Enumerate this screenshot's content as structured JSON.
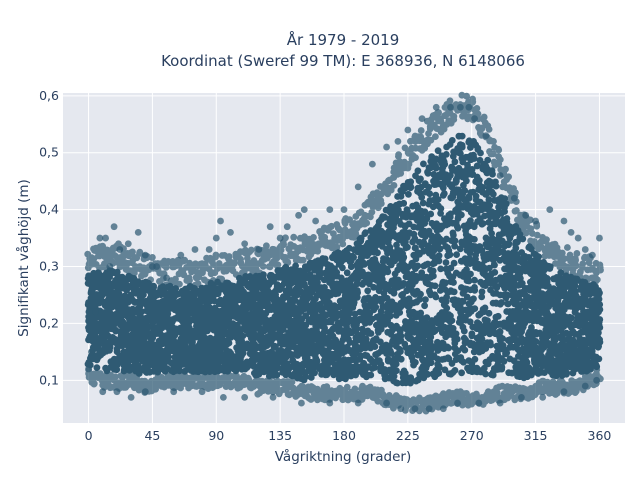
{
  "chart_data": {
    "type": "scatter",
    "title_line1": "År 1979 - 2019",
    "title_line2": "Koordinat (Sweref 99 TM): E 368936, N 6148066",
    "xlabel": "Vågriktning (grader)",
    "ylabel": "Signifikant våghöjd (m)",
    "xlim": [
      -18,
      378
    ],
    "ylim": [
      0.025,
      0.605
    ],
    "x_ticks": [
      0,
      45,
      90,
      135,
      180,
      225,
      270,
      315,
      360
    ],
    "x_tick_labels": [
      "0",
      "45",
      "90",
      "135",
      "180",
      "225",
      "270",
      "315",
      "360"
    ],
    "y_ticks": [
      0.1,
      0.2,
      0.3,
      0.4,
      0.5,
      0.6
    ],
    "y_tick_labels": [
      "0,1",
      "0,2",
      "0,3",
      "0,4",
      "0,5",
      "0,6"
    ],
    "grid": true,
    "marker_color": "#2f5a73",
    "plot_background": "#e5e8ef",
    "envelope": {
      "x": [
        0,
        10,
        20,
        30,
        40,
        50,
        60,
        70,
        80,
        90,
        100,
        110,
        120,
        130,
        140,
        150,
        160,
        170,
        180,
        190,
        200,
        210,
        220,
        230,
        240,
        250,
        260,
        270,
        280,
        290,
        300,
        310,
        320,
        330,
        340,
        350,
        360
      ],
      "upper": [
        0.3,
        0.31,
        0.31,
        0.3,
        0.29,
        0.28,
        0.28,
        0.28,
        0.28,
        0.29,
        0.29,
        0.3,
        0.3,
        0.31,
        0.32,
        0.32,
        0.33,
        0.34,
        0.35,
        0.37,
        0.4,
        0.43,
        0.47,
        0.5,
        0.53,
        0.55,
        0.57,
        0.57,
        0.53,
        0.47,
        0.4,
        0.36,
        0.33,
        0.31,
        0.3,
        0.29,
        0.28
      ],
      "lower": [
        0.11,
        0.1,
        0.1,
        0.1,
        0.09,
        0.1,
        0.1,
        0.1,
        0.1,
        0.1,
        0.1,
        0.1,
        0.09,
        0.09,
        0.09,
        0.08,
        0.08,
        0.08,
        0.08,
        0.08,
        0.08,
        0.07,
        0.06,
        0.06,
        0.06,
        0.07,
        0.07,
        0.07,
        0.07,
        0.08,
        0.08,
        0.08,
        0.09,
        0.09,
        0.09,
        0.1,
        0.11
      ]
    },
    "sample_points": [
      [
        0,
        0.12
      ],
      [
        2,
        0.15
      ],
      [
        5,
        0.22
      ],
      [
        8,
        0.35
      ],
      [
        12,
        0.35
      ],
      [
        15,
        0.3
      ],
      [
        18,
        0.37
      ],
      [
        22,
        0.33
      ],
      [
        28,
        0.34
      ],
      [
        35,
        0.36
      ],
      [
        40,
        0.32
      ],
      [
        45,
        0.3
      ],
      [
        48,
        0.3
      ],
      [
        55,
        0.28
      ],
      [
        65,
        0.32
      ],
      [
        75,
        0.33
      ],
      [
        85,
        0.33
      ],
      [
        90,
        0.35
      ],
      [
        93,
        0.38
      ],
      [
        100,
        0.36
      ],
      [
        110,
        0.34
      ],
      [
        120,
        0.33
      ],
      [
        128,
        0.37
      ],
      [
        135,
        0.35
      ],
      [
        140,
        0.37
      ],
      [
        148,
        0.39
      ],
      [
        152,
        0.4
      ],
      [
        160,
        0.38
      ],
      [
        170,
        0.4
      ],
      [
        180,
        0.4
      ],
      [
        190,
        0.44
      ],
      [
        200,
        0.48
      ],
      [
        210,
        0.51
      ],
      [
        218,
        0.52
      ],
      [
        225,
        0.54
      ],
      [
        235,
        0.56
      ],
      [
        245,
        0.58
      ],
      [
        255,
        0.58
      ],
      [
        262,
        0.58
      ],
      [
        268,
        0.58
      ],
      [
        272,
        0.56
      ],
      [
        280,
        0.53
      ],
      [
        290,
        0.46
      ],
      [
        300,
        0.42
      ],
      [
        308,
        0.39
      ],
      [
        315,
        0.38
      ],
      [
        325,
        0.4
      ],
      [
        335,
        0.38
      ],
      [
        340,
        0.36
      ],
      [
        345,
        0.35
      ],
      [
        350,
        0.33
      ],
      [
        355,
        0.32
      ],
      [
        360,
        0.35
      ],
      [
        10,
        0.08
      ],
      [
        20,
        0.08
      ],
      [
        30,
        0.07
      ],
      [
        40,
        0.08
      ],
      [
        60,
        0.08
      ],
      [
        80,
        0.08
      ],
      [
        95,
        0.07
      ],
      [
        110,
        0.07
      ],
      [
        130,
        0.07
      ],
      [
        150,
        0.06
      ],
      [
        170,
        0.06
      ],
      [
        190,
        0.06
      ],
      [
        210,
        0.06
      ],
      [
        220,
        0.05
      ],
      [
        230,
        0.05
      ],
      [
        240,
        0.05
      ],
      [
        250,
        0.05
      ],
      [
        260,
        0.06
      ],
      [
        275,
        0.06
      ],
      [
        290,
        0.06
      ],
      [
        305,
        0.07
      ],
      [
        320,
        0.07
      ],
      [
        335,
        0.08
      ],
      [
        350,
        0.09
      ],
      [
        358,
        0.1
      ]
    ]
  }
}
